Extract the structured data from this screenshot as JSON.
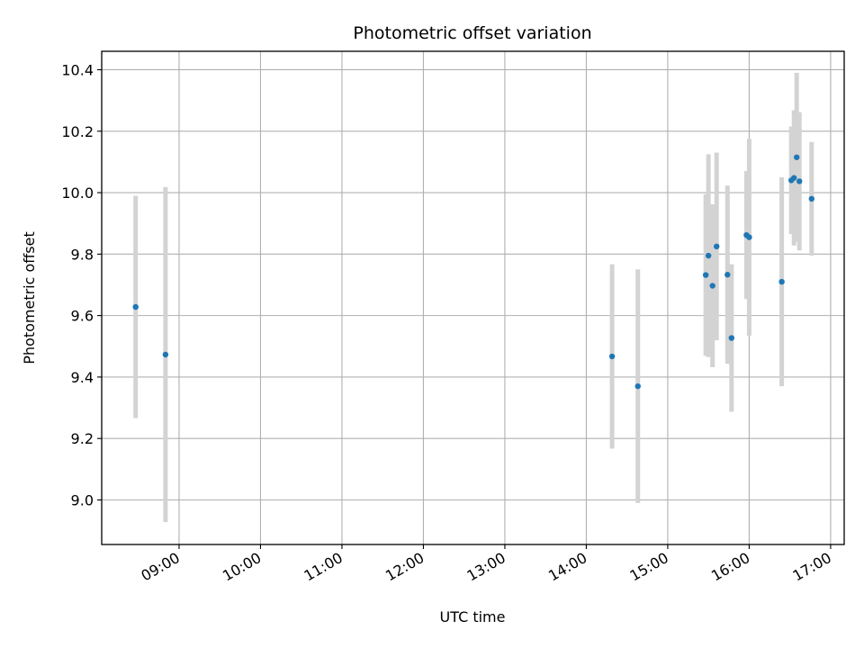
{
  "chart_data": {
    "type": "scatter",
    "title": "Photometric offset variation",
    "xlabel": "UTC time",
    "ylabel": "Photometric offset",
    "x_ticks": [
      "09:00",
      "10:00",
      "11:00",
      "12:00",
      "13:00",
      "14:00",
      "15:00",
      "16:00",
      "17:00"
    ],
    "y_ticks": [
      "9.0",
      "9.2",
      "9.4",
      "9.6",
      "9.8",
      "10.0",
      "10.2",
      "10.4"
    ],
    "xlim": [
      "08:03",
      "17:10"
    ],
    "ylim": [
      8.855,
      10.46
    ],
    "grid": true,
    "point_color": "#1f77b4",
    "errorbar_color": "#d3d3d3",
    "points": [
      {
        "t": "08:28",
        "y": 9.628,
        "err": 0.362
      },
      {
        "t": "08:50",
        "y": 9.473,
        "err": 0.545
      },
      {
        "t": "14:19",
        "y": 9.467,
        "err": 0.3
      },
      {
        "t": "14:38",
        "y": 9.37,
        "err": 0.38
      },
      {
        "t": "15:28",
        "y": 9.732,
        "err": 0.263
      },
      {
        "t": "15:30",
        "y": 9.795,
        "err": 0.33
      },
      {
        "t": "15:33",
        "y": 9.697,
        "err": 0.265
      },
      {
        "t": "15:36",
        "y": 9.825,
        "err": 0.305
      },
      {
        "t": "15:44",
        "y": 9.733,
        "err": 0.29
      },
      {
        "t": "15:47",
        "y": 9.527,
        "err": 0.24
      },
      {
        "t": "15:58",
        "y": 9.862,
        "err": 0.208
      },
      {
        "t": "16:00",
        "y": 9.855,
        "err": 0.32
      },
      {
        "t": "16:24",
        "y": 9.71,
        "err": 0.34
      },
      {
        "t": "16:31",
        "y": 10.04,
        "err": 0.175
      },
      {
        "t": "16:33",
        "y": 10.048,
        "err": 0.22
      },
      {
        "t": "16:35",
        "y": 10.115,
        "err": 0.275
      },
      {
        "t": "16:37",
        "y": 10.037,
        "err": 0.225
      },
      {
        "t": "16:46",
        "y": 9.98,
        "err": 0.185
      }
    ]
  }
}
